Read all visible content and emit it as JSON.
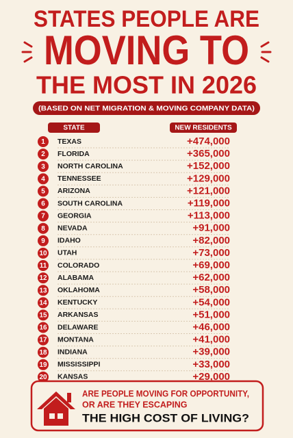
{
  "header": {
    "line1": "STATES PEOPLE ARE",
    "line2": "MOVING TO",
    "line3": "THE MOST IN 2026",
    "subtitle": "(BASED ON NET MIGRATION & MOVING COMPANY DATA)"
  },
  "table": {
    "columns": [
      "STATE",
      "NEW RESIDENTS"
    ],
    "rows": [
      [
        "1",
        "TEXAS",
        "+474,000"
      ],
      [
        "2",
        "FLORIDA",
        "+365,000"
      ],
      [
        "3",
        "NORTH CAROLINA",
        "+152,000"
      ],
      [
        "4",
        "TENNESSEE",
        "+129,000"
      ],
      [
        "5",
        "ARIZONA",
        "+121,000"
      ],
      [
        "6",
        "SOUTH CAROLINA",
        "+119,000"
      ],
      [
        "7",
        "GEORGIA",
        "+113,000"
      ],
      [
        "8",
        "NEVADA",
        "+91,000"
      ],
      [
        "9",
        "IDAHO",
        "+82,000"
      ],
      [
        "10",
        "UTAH",
        "+73,000"
      ],
      [
        "11",
        "COLORADO",
        "+69,000"
      ],
      [
        "12",
        "ALABAMA",
        "+62,000"
      ],
      [
        "13",
        "OKLAHOMA",
        "+58,000"
      ],
      [
        "14",
        "KENTUCKY",
        "+54,000"
      ],
      [
        "15",
        "ARKANSAS",
        "+51,000"
      ],
      [
        "16",
        "DELAWARE",
        "+46,000"
      ],
      [
        "17",
        "MONTANA",
        "+41,000"
      ],
      [
        "18",
        "INDIANA",
        "+39,000"
      ],
      [
        "19",
        "MISSISSIPPI",
        "+33,000"
      ],
      [
        "20",
        "KANSAS",
        "+29,000"
      ]
    ]
  },
  "footer": {
    "line1": "ARE PEOPLE MOVING FOR OPPORTUNITY,",
    "line2": "OR ARE THEY ESCAPING",
    "line3": "THE HIGH COST OF LIVING?"
  }
}
